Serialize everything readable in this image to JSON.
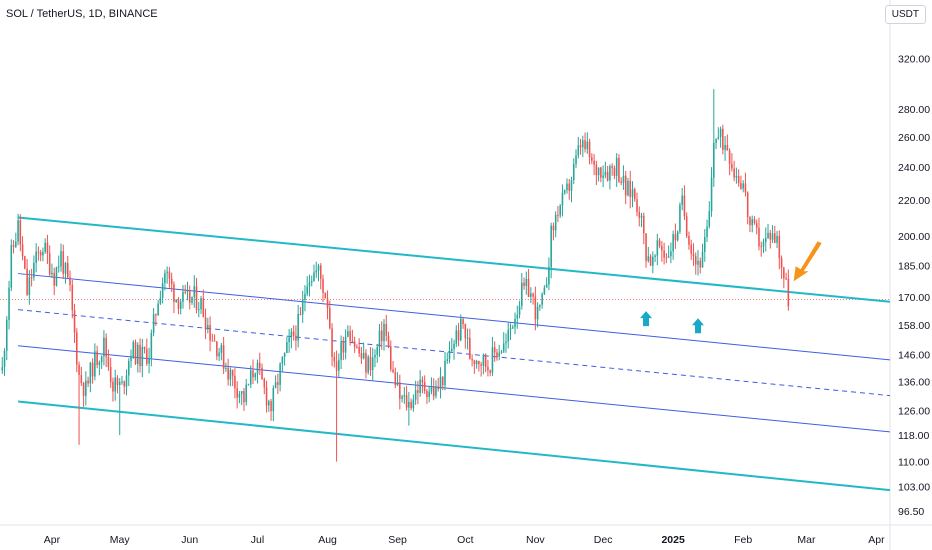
{
  "header": {
    "symbol": "SOL / TetherUS, 1D, BINANCE",
    "currency": "USDT"
  },
  "colors": {
    "up": "#26a69a",
    "down": "#ef5350",
    "outer_channel": "#22b8c8",
    "inner_channel": "#3d5de6",
    "reference_line": "#ef5350",
    "up_arrow": "#18a9c7",
    "callout_arrow": "#f7931a"
  },
  "chart_data": {
    "type": "candlestick",
    "scale": "log",
    "y_ticks": [
      "320.00",
      "280.00",
      "260.00",
      "240.00",
      "220.00",
      "200.00",
      "185.00",
      "170.00",
      "158.00",
      "146.00",
      "136.00",
      "126.00",
      "118.00",
      "110.00",
      "103.00",
      "96.50"
    ],
    "y_tick_values": [
      320,
      280,
      260,
      240,
      220,
      200,
      185,
      170,
      158,
      146,
      136,
      126,
      118,
      110,
      103,
      96.5
    ],
    "ylim": [
      93,
      345
    ],
    "x_ticks": [
      "Apr",
      "May",
      "Jun",
      "Jul",
      "Aug",
      "Sep",
      "Oct",
      "Nov",
      "Dec",
      "2025",
      "Feb",
      "Mar",
      "Apr"
    ],
    "x_tick_dates": [
      "2024-04-01",
      "2024-05-01",
      "2024-06-01",
      "2024-07-01",
      "2024-08-01",
      "2024-09-01",
      "2024-10-01",
      "2024-11-01",
      "2024-12-01",
      "2025-01-01",
      "2025-02-01",
      "2025-03-01",
      "2025-04-01"
    ],
    "bold_x_tick": "2025",
    "xlim": [
      "2024-03-09",
      "2025-04-07"
    ],
    "price_path": [
      [
        "2024-03-10",
        140
      ],
      [
        "2024-03-14",
        190
      ],
      [
        "2024-03-17",
        205
      ],
      [
        "2024-03-21",
        172
      ],
      [
        "2024-03-24",
        185
      ],
      [
        "2024-03-28",
        195
      ],
      [
        "2024-04-02",
        180
      ],
      [
        "2024-04-05",
        190
      ],
      [
        "2024-04-09",
        172
      ],
      [
        "2024-04-13",
        138
      ],
      [
        "2024-04-16",
        133
      ],
      [
        "2024-04-19",
        142
      ],
      [
        "2024-04-24",
        150
      ],
      [
        "2024-04-28",
        135
      ],
      [
        "2024-05-02",
        134
      ],
      [
        "2024-05-06",
        148
      ],
      [
        "2024-05-10",
        145
      ],
      [
        "2024-05-14",
        147
      ],
      [
        "2024-05-18",
        170
      ],
      [
        "2024-05-21",
        182
      ],
      [
        "2024-05-26",
        170
      ],
      [
        "2024-05-30",
        168
      ],
      [
        "2024-06-03",
        170
      ],
      [
        "2024-06-06",
        167
      ],
      [
        "2024-06-10",
        155
      ],
      [
        "2024-06-14",
        148
      ],
      [
        "2024-06-18",
        140
      ],
      [
        "2024-06-22",
        134
      ],
      [
        "2024-06-25",
        130
      ],
      [
        "2024-06-30",
        142
      ],
      [
        "2024-07-04",
        133
      ],
      [
        "2024-07-07",
        127
      ],
      [
        "2024-07-11",
        140
      ],
      [
        "2024-07-15",
        150
      ],
      [
        "2024-07-20",
        160
      ],
      [
        "2024-07-23",
        180
      ],
      [
        "2024-07-28",
        182
      ],
      [
        "2024-08-01",
        168
      ],
      [
        "2024-08-04",
        140
      ],
      [
        "2024-08-07",
        148
      ],
      [
        "2024-08-10",
        158
      ],
      [
        "2024-08-14",
        148
      ],
      [
        "2024-08-18",
        142
      ],
      [
        "2024-08-22",
        145
      ],
      [
        "2024-08-26",
        158
      ],
      [
        "2024-08-30",
        138
      ],
      [
        "2024-09-02",
        130
      ],
      [
        "2024-09-06",
        128
      ],
      [
        "2024-09-10",
        134
      ],
      [
        "2024-09-14",
        134
      ],
      [
        "2024-09-18",
        132
      ],
      [
        "2024-09-22",
        140
      ],
      [
        "2024-09-26",
        152
      ],
      [
        "2024-09-30",
        158
      ],
      [
        "2024-10-03",
        146
      ],
      [
        "2024-10-07",
        145
      ],
      [
        "2024-10-11",
        142
      ],
      [
        "2024-10-15",
        148
      ],
      [
        "2024-10-19",
        150
      ],
      [
        "2024-10-22",
        160
      ],
      [
        "2024-10-26",
        172
      ],
      [
        "2024-10-29",
        174
      ],
      [
        "2024-11-02",
        162
      ],
      [
        "2024-11-05",
        170
      ],
      [
        "2024-11-08",
        200
      ],
      [
        "2024-11-11",
        215
      ],
      [
        "2024-11-14",
        220
      ],
      [
        "2024-11-18",
        238
      ],
      [
        "2024-11-21",
        255
      ],
      [
        "2024-11-24",
        250
      ],
      [
        "2024-11-27",
        238
      ],
      [
        "2024-11-30",
        240
      ],
      [
        "2024-12-03",
        238
      ],
      [
        "2024-12-07",
        242
      ],
      [
        "2024-12-11",
        225
      ],
      [
        "2024-12-14",
        225
      ],
      [
        "2024-12-17",
        215
      ],
      [
        "2024-12-20",
        192
      ],
      [
        "2024-12-23",
        186
      ],
      [
        "2024-12-26",
        195
      ],
      [
        "2024-12-29",
        190
      ],
      [
        "2025-01-02",
        200
      ],
      [
        "2025-01-05",
        218
      ],
      [
        "2025-01-08",
        200
      ],
      [
        "2025-01-11",
        187
      ],
      [
        "2025-01-14",
        188
      ],
      [
        "2025-01-17",
        210
      ],
      [
        "2025-01-19",
        260
      ],
      [
        "2025-01-22",
        258
      ],
      [
        "2025-01-25",
        255
      ],
      [
        "2025-01-28",
        238
      ],
      [
        "2025-02-01",
        230
      ],
      [
        "2025-02-04",
        205
      ],
      [
        "2025-02-07",
        200
      ],
      [
        "2025-02-10",
        195
      ],
      [
        "2025-02-13",
        202
      ],
      [
        "2025-02-16",
        198
      ],
      [
        "2025-02-19",
        180
      ],
      [
        "2025-02-21",
        170
      ]
    ],
    "high_low_extremes": [
      [
        "2024-03-17",
        212,
        "high"
      ],
      [
        "2024-04-13",
        115,
        "low"
      ],
      [
        "2024-05-01",
        118,
        "low"
      ],
      [
        "2024-08-05",
        110,
        "low"
      ],
      [
        "2024-09-06",
        121,
        "low"
      ],
      [
        "2025-01-19",
        295,
        "high"
      ],
      [
        "2025-02-21",
        164,
        "low"
      ]
    ],
    "reference_price": 169,
    "trend_lines": [
      {
        "style": "solid",
        "color": "outer",
        "points": [
          [
            "2024-03-17",
            210
          ],
          [
            "2025-04-07",
            168
          ]
        ]
      },
      {
        "style": "solid",
        "color": "outer",
        "points": [
          [
            "2024-03-17",
            129
          ],
          [
            "2025-04-07",
            102
          ]
        ]
      },
      {
        "style": "solid",
        "color": "inner",
        "points": [
          [
            "2024-03-17",
            181
          ],
          [
            "2025-04-07",
            144
          ]
        ]
      },
      {
        "style": "dashed",
        "color": "inner",
        "points": [
          [
            "2024-03-17",
            164.5
          ],
          [
            "2025-04-07",
            131
          ]
        ]
      },
      {
        "style": "solid",
        "color": "inner",
        "points": [
          [
            "2024-03-17",
            149.5
          ],
          [
            "2025-04-07",
            119
          ]
        ]
      }
    ],
    "markers": [
      {
        "type": "up-arrow",
        "date": "2024-12-20",
        "price": 160
      },
      {
        "type": "up-arrow",
        "date": "2025-01-12",
        "price": 157
      },
      {
        "type": "down-left-arrow",
        "date": "2025-02-26",
        "price": 185
      }
    ]
  }
}
